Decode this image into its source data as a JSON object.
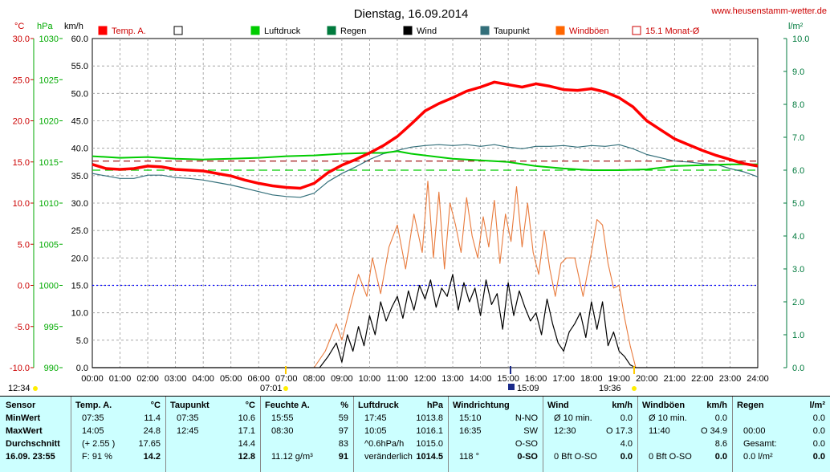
{
  "header": {
    "title": "Dienstag, 16.09.2014",
    "site": "www.heusenstamm-wetter.de"
  },
  "axes": {
    "temp_unit": "°C",
    "pressure_unit": "hPa",
    "wind_unit": "km/h",
    "rain_unit": "l/m²",
    "temp_ticks": [
      "30.0",
      "25.0",
      "20.0",
      "15.0",
      "10.0",
      "5.0",
      "0.0",
      "-5.0",
      "-10.0"
    ],
    "pressure_ticks": [
      "1030",
      "1025",
      "1020",
      "1015",
      "1010",
      "1005",
      "1000",
      "995",
      "990"
    ],
    "wind_ticks": [
      "60.0",
      "55.0",
      "50.0",
      "45.0",
      "40.0",
      "35.0",
      "30.0",
      "25.0",
      "20.0",
      "15.0",
      "10.0",
      "5.0",
      "0.0"
    ],
    "rain_ticks": [
      "10.0",
      "9.0",
      "8.0",
      "7.0",
      "6.0",
      "5.0",
      "4.0",
      "3.0",
      "2.0",
      "1.0",
      "0.0"
    ],
    "time_ticks": [
      "00:00",
      "01:00",
      "02:00",
      "03:00",
      "04:00",
      "05:00",
      "06:00",
      "07:00",
      "08:00",
      "09:00",
      "10:00",
      "11:00",
      "12:00",
      "13:00",
      "14:00",
      "15:00",
      "16:00",
      "17:00",
      "18:00",
      "19:00",
      "20:00",
      "21:00",
      "22:00",
      "23:00",
      "24:00"
    ],
    "sun_markers": {
      "left": "12:34",
      "sunrise": "07:01",
      "peak": "15:09",
      "sunset": "19:36"
    }
  },
  "legend": [
    {
      "label": "Temp. A.",
      "color": "#ff0000",
      "style": "filled"
    },
    {
      "label": "",
      "color": "#ffffff",
      "style": "empty"
    },
    {
      "label": "Luftdruck",
      "color": "#00cc00",
      "style": "filled"
    },
    {
      "label": "Regen",
      "color": "#007a3d",
      "style": "filled"
    },
    {
      "label": "Wind",
      "color": "#000000",
      "style": "filled"
    },
    {
      "label": "Taupunkt",
      "color": "#336f7a",
      "style": "filled"
    },
    {
      "label": "Windböen",
      "color": "#ff6600",
      "style": "filled"
    },
    {
      "label": "15.1 Monat-Ø",
      "color": "#cc0000",
      "style": "empty"
    }
  ],
  "colors": {
    "temp": "#ff0000",
    "pressure": "#00cc00",
    "dew": "#336f7a",
    "wind": "#000000",
    "gust": "#e87a3c",
    "rain_axis": "#007a3d",
    "zero_line": "#0000ff",
    "month_avg": "#990000"
  },
  "chart_data": {
    "type": "line",
    "title": "Dienstag, 16.09.2014",
    "x_unit": "hours",
    "xlim": [
      0,
      24
    ],
    "temp_range": [
      -10,
      30
    ],
    "pressure_range": [
      990,
      1030
    ],
    "wind_range": [
      0,
      60
    ],
    "rain_range": [
      0,
      10
    ],
    "series": [
      {
        "name": "Temp. A.",
        "axis": "temp",
        "x": [
          0,
          0.5,
          1,
          1.5,
          2,
          2.5,
          3,
          3.5,
          4,
          4.5,
          5,
          5.5,
          6,
          6.5,
          7,
          7.5,
          8,
          8.5,
          9,
          9.5,
          10,
          10.5,
          11,
          11.5,
          12,
          12.5,
          13,
          13.5,
          14,
          14.5,
          15,
          15.5,
          16,
          16.5,
          17,
          17.5,
          18,
          18.5,
          19,
          19.5,
          20,
          20.5,
          21,
          21.5,
          22,
          22.5,
          23,
          23.5,
          24
        ],
        "y": [
          14.7,
          14.2,
          14.1,
          14.2,
          14.5,
          14.4,
          14.1,
          14.0,
          13.9,
          13.6,
          13.3,
          12.8,
          12.4,
          12.1,
          11.9,
          11.8,
          12.4,
          13.7,
          14.6,
          15.3,
          16.1,
          17.0,
          18.1,
          19.6,
          21.2,
          22.1,
          22.8,
          23.6,
          24.1,
          24.7,
          24.4,
          24.1,
          24.5,
          24.2,
          23.8,
          23.7,
          23.9,
          23.5,
          22.8,
          21.7,
          20.0,
          18.9,
          17.8,
          17.1,
          16.4,
          15.8,
          15.3,
          14.8,
          14.5
        ]
      },
      {
        "name": "Taupunkt",
        "axis": "temp",
        "x": [
          0,
          0.5,
          1,
          1.5,
          2,
          2.5,
          3,
          3.5,
          4,
          4.5,
          5,
          5.5,
          6,
          6.5,
          7,
          7.5,
          8,
          8.5,
          9,
          9.5,
          10,
          10.5,
          11,
          11.5,
          12,
          12.5,
          13,
          13.5,
          14,
          14.5,
          15,
          15.5,
          16,
          16.5,
          17,
          17.5,
          18,
          18.5,
          19,
          19.5,
          20,
          20.5,
          21,
          21.5,
          22,
          22.5,
          23,
          23.5,
          24
        ],
        "y": [
          13.6,
          13.3,
          13.0,
          13.0,
          13.4,
          13.4,
          13.1,
          13.0,
          12.8,
          12.5,
          12.2,
          11.8,
          11.4,
          11.0,
          10.8,
          10.7,
          11.2,
          12.6,
          13.6,
          14.4,
          15.3,
          16.0,
          16.4,
          16.8,
          17.0,
          17.1,
          17.0,
          17.1,
          16.9,
          17.1,
          16.8,
          16.6,
          16.9,
          16.9,
          17.0,
          16.8,
          17.0,
          16.9,
          17.1,
          16.6,
          15.9,
          15.5,
          15.1,
          15.0,
          14.8,
          14.7,
          14.2,
          13.8,
          13.2
        ]
      },
      {
        "name": "Luftdruck",
        "axis": "pressure",
        "x": [
          0,
          1,
          2,
          3,
          4,
          5,
          6,
          7,
          8,
          9,
          10,
          10.5,
          11,
          11.5,
          12,
          13,
          14,
          15,
          16,
          17,
          18,
          19,
          20,
          21,
          22,
          23,
          24
        ],
        "y": [
          1015.7,
          1015.5,
          1015.6,
          1015.4,
          1015.3,
          1015.4,
          1015.5,
          1015.7,
          1015.8,
          1016.0,
          1016.1,
          1016.1,
          1016.3,
          1016.0,
          1015.8,
          1015.4,
          1015.2,
          1015.0,
          1014.5,
          1014.2,
          1014.0,
          1014.0,
          1014.1,
          1014.5,
          1014.6,
          1014.7,
          1014.7
        ]
      },
      {
        "name": "Wind",
        "axis": "wind",
        "x": [
          0,
          8.2,
          8.5,
          8.8,
          9.0,
          9.2,
          9.4,
          9.6,
          9.8,
          10.0,
          10.2,
          10.4,
          10.6,
          10.8,
          11.0,
          11.2,
          11.4,
          11.6,
          11.8,
          12.0,
          12.2,
          12.4,
          12.6,
          12.8,
          13.0,
          13.2,
          13.4,
          13.6,
          13.8,
          14.0,
          14.2,
          14.4,
          14.6,
          14.8,
          15.0,
          15.2,
          15.4,
          15.6,
          15.8,
          16.0,
          16.2,
          16.4,
          16.6,
          16.8,
          17.0,
          17.2,
          17.4,
          17.6,
          17.8,
          18.0,
          18.2,
          18.4,
          18.6,
          18.8,
          19.0,
          19.2,
          19.4,
          19.6,
          24
        ],
        "y": [
          0,
          0,
          2.0,
          4.5,
          1.0,
          6.0,
          3.0,
          7.5,
          4.0,
          9.5,
          6.0,
          12.0,
          8.5,
          11.0,
          13.0,
          9.0,
          14.0,
          10.5,
          15.0,
          12.5,
          16.0,
          11.0,
          14.5,
          13.0,
          17.0,
          10.5,
          15.5,
          12.0,
          14.5,
          9.5,
          16.0,
          11.5,
          13.5,
          7.0,
          15.5,
          9.5,
          14.0,
          11.0,
          8.5,
          10.0,
          6.0,
          12.5,
          8.0,
          4.5,
          3.0,
          6.5,
          8.0,
          10.0,
          5.5,
          12.0,
          7.0,
          12.0,
          4.0,
          6.5,
          3.0,
          2.0,
          0.5,
          0,
          0
        ]
      },
      {
        "name": "Windböen",
        "axis": "wind",
        "x": [
          0,
          8.0,
          8.4,
          8.8,
          9.0,
          9.3,
          9.6,
          9.9,
          10.1,
          10.4,
          10.7,
          11.0,
          11.3,
          11.6,
          11.9,
          12.1,
          12.3,
          12.5,
          12.7,
          12.9,
          13.1,
          13.3,
          13.5,
          13.7,
          13.9,
          14.1,
          14.3,
          14.5,
          14.7,
          14.9,
          15.1,
          15.3,
          15.5,
          15.7,
          15.9,
          16.1,
          16.3,
          16.5,
          16.7,
          16.9,
          17.1,
          17.4,
          17.7,
          18.0,
          18.2,
          18.4,
          18.6,
          18.8,
          19.0,
          19.2,
          19.4,
          19.6,
          24
        ],
        "y": [
          0,
          0,
          3.0,
          8.0,
          5.0,
          11.0,
          17.0,
          13.0,
          20.0,
          13.5,
          22.0,
          26.0,
          18.0,
          28.0,
          21.0,
          34.0,
          20.0,
          32.0,
          18.0,
          30.0,
          26.0,
          21.0,
          31.0,
          24.0,
          20.0,
          27.5,
          22.0,
          30.5,
          19.0,
          28.0,
          23.0,
          33.0,
          22.0,
          30.0,
          21.0,
          17.0,
          25.0,
          18.0,
          13.0,
          19.0,
          20.0,
          20.0,
          13.0,
          21.0,
          27.0,
          26.0,
          19.0,
          14.5,
          15.0,
          9.0,
          4.0,
          0,
          0
        ]
      },
      {
        "name": "15.1 Monat-Ø",
        "axis": "temp",
        "x": [
          0,
          24
        ],
        "y": [
          15.1,
          15.1
        ]
      }
    ],
    "zero_line": {
      "axis": "temp",
      "y": 0
    },
    "pressure_ref": {
      "axis": "pressure",
      "y": 1014
    }
  },
  "table": {
    "sensor": {
      "title": "Sensor",
      "rows": [
        "MinWert",
        "MaxWert",
        "Durchschnitt",
        "16.09. 23:55"
      ]
    },
    "temp": {
      "title": "Temp. A.",
      "unit": "°C",
      "rows": [
        [
          "07:35",
          "11.4"
        ],
        [
          "14:05",
          "24.8"
        ],
        [
          "(+ 2.55 )",
          "17.65"
        ],
        [
          "F: 91 %",
          "14.2"
        ]
      ]
    },
    "dew": {
      "title": "Taupunkt",
      "unit": "°C",
      "rows": [
        [
          "07:35",
          "10.6"
        ],
        [
          "12:45",
          "17.1"
        ],
        [
          "",
          "14.4"
        ],
        [
          "",
          "12.8"
        ]
      ]
    },
    "hum": {
      "title": "Feuchte A.",
      "unit": "%",
      "rows": [
        [
          "15:55",
          "59"
        ],
        [
          "08:30",
          "97"
        ],
        [
          "",
          "83"
        ],
        [
          "11.12 g/m³",
          "91"
        ]
      ]
    },
    "press": {
      "title": "Luftdruck",
      "unit": "hPa",
      "rows": [
        [
          "17:45",
          "1013.8"
        ],
        [
          "10:05",
          "1016.1"
        ],
        [
          "^0.6hPa/h",
          "1015.0"
        ],
        [
          "veränderlich",
          "1014.5"
        ]
      ]
    },
    "dir": {
      "title": "Windrichtung",
      "rows": [
        [
          "15:10",
          "N-NO"
        ],
        [
          "16:35",
          "SW"
        ],
        [
          "",
          "O-SO"
        ],
        [
          "118 °",
          "0-SO"
        ]
      ]
    },
    "wind": {
      "title": "Wind",
      "unit": "km/h",
      "rows": [
        [
          "Ø 10 min.",
          "0.0"
        ],
        [
          "12:30",
          "O 17.3"
        ],
        [
          "",
          "4.0"
        ],
        [
          "0 Bft O-SO",
          "0.0"
        ]
      ]
    },
    "gust": {
      "title": "Windböen",
      "unit": "km/h",
      "rows": [
        [
          "Ø 10 min.",
          "0.0"
        ],
        [
          "11:40",
          "O 34.9"
        ],
        [
          "",
          "8.6"
        ],
        [
          "0 Bft O-SO",
          "0.0"
        ]
      ]
    },
    "rain": {
      "title": "Regen",
      "unit": "l/m²",
      "rows": [
        [
          "",
          "0.0"
        ],
        [
          "00:00",
          "0.0"
        ],
        [
          "Gesamt:",
          "0.0"
        ],
        [
          "0.0 l/m²",
          "0.0"
        ]
      ]
    }
  }
}
